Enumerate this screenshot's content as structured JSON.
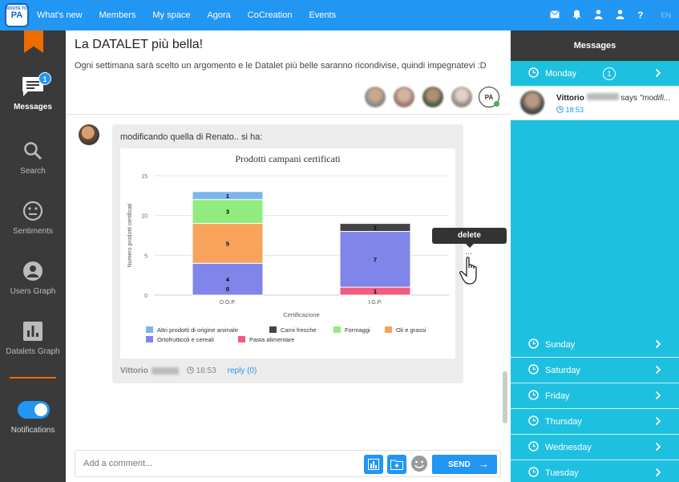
{
  "nav": {
    "logo_text": "PA",
    "logo_small": "ROUTE TO",
    "links": [
      "What's new",
      "Members",
      "My space",
      "Agora",
      "CoCreation",
      "Events"
    ],
    "lang": "EN",
    "help": "?"
  },
  "sidebar": {
    "messages_badge": "1",
    "items": [
      {
        "label": "Messages",
        "icon": "messages-icon"
      },
      {
        "label": "Search",
        "icon": "search-icon"
      },
      {
        "label": "Sentiments",
        "icon": "face-icon"
      },
      {
        "label": "Users Graph",
        "icon": "user-icon"
      },
      {
        "label": "Datalets Graph",
        "icon": "bar-chart-icon"
      }
    ],
    "notifications_label": "Notifications",
    "notifications_on": true
  },
  "room": {
    "title": "La DATALET più bella!",
    "description": "Ogni settimana sarà scelto un argomento e le Datalet più belle saranno ricondivise, quindi impegnatevi :D",
    "logo_avatar_text": "PA"
  },
  "post": {
    "text": "modificando quella di Renato.. si ha:",
    "author": "Vittorio",
    "time": "18:53",
    "reply": "reply (0)"
  },
  "tooltip": "delete",
  "more": "...",
  "composer": {
    "placeholder": "Add a comment...",
    "send": "SEND"
  },
  "right_panel": {
    "title": "Messages",
    "days": [
      "Monday",
      "Sunday",
      "Saturday",
      "Friday",
      "Thursday",
      "Wednesday",
      "Tuesday"
    ],
    "monday_count": "1",
    "message": {
      "author": "Vittorio",
      "verb": "says",
      "preview": "\"modifi...",
      "time": "18:53"
    }
  },
  "chart_data": {
    "type": "bar",
    "stacked": true,
    "title": "Prodotti campani certificati",
    "xlabel": "Certificazione",
    "ylabel": "Numero prodotti certificati",
    "ylim": [
      0,
      15
    ],
    "yticks": [
      0,
      5,
      10,
      15
    ],
    "grid": true,
    "legend_position": "bottom",
    "categories": [
      "D.O.P.",
      "I.G.P."
    ],
    "series": [
      {
        "name": "Altri prodotti di origine animale",
        "color": "#7cb5ec",
        "values": [
          1,
          0
        ]
      },
      {
        "name": "Carni fresche",
        "color": "#434348",
        "values": [
          0,
          1
        ]
      },
      {
        "name": "Formaggi",
        "color": "#90ed7d",
        "values": [
          3,
          0
        ]
      },
      {
        "name": "Oli e grassi",
        "color": "#f7a35c",
        "values": [
          5,
          0
        ]
      },
      {
        "name": "Ortofrutticoli e cereali",
        "color": "#8085e9",
        "values": [
          4,
          7
        ]
      },
      {
        "name": "Pasta alimentare",
        "color": "#f15c80",
        "values": [
          0,
          1
        ]
      }
    ],
    "stack_order_bottom_to_top": [
      "Pasta alimentare",
      "Ortofrutticoli e cereali",
      "Oli e grassi",
      "Formaggi",
      "Carni fresche",
      "Altri prodotti di origine animale"
    ]
  }
}
